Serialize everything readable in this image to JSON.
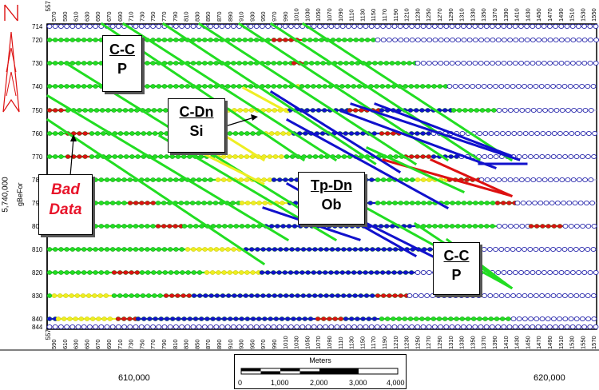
{
  "ruler_top": [
    "570",
    "590",
    "610",
    "630",
    "650",
    "670",
    "690",
    "710",
    "730",
    "750",
    "770",
    "790",
    "810",
    "830",
    "850",
    "870",
    "890",
    "910",
    "930",
    "950",
    "970",
    "990",
    "1010",
    "1030",
    "1050",
    "1070",
    "1090",
    "1110",
    "1130",
    "1150",
    "1170",
    "1190",
    "1210",
    "1230",
    "1250",
    "1270",
    "1290",
    "1310",
    "1330",
    "1350",
    "1370",
    "1390",
    "1410",
    "1430",
    "1450",
    "1470",
    "1490",
    "1510",
    "1530",
    "1550"
  ],
  "ruler_bottom": [
    "590",
    "610",
    "630",
    "650",
    "670",
    "690",
    "710",
    "730",
    "750",
    "770",
    "790",
    "810",
    "830",
    "850",
    "870",
    "890",
    "910",
    "930",
    "950",
    "970",
    "990",
    "1010",
    "1030",
    "1050",
    "1070",
    "1090",
    "1110",
    "1130",
    "1150",
    "1170",
    "1190",
    "1210",
    "1230",
    "1250",
    "1270",
    "1290",
    "1310",
    "1330",
    "1350",
    "1370",
    "1390",
    "1410",
    "1430",
    "1450",
    "1470",
    "1490",
    "1510",
    "1530",
    "1550",
    "1570"
  ],
  "corner_labels": {
    "top": "557",
    "bottom": "557"
  },
  "line_labels": [
    "714",
    "720",
    "730",
    "740",
    "750",
    "760",
    "770",
    "780",
    "790",
    "800",
    "810",
    "820",
    "830",
    "840",
    "844"
  ],
  "callouts": [
    {
      "line1": "C-C",
      "line2": "P"
    },
    {
      "line1": "C-Dn",
      "line2": "Si"
    },
    {
      "line1": "Tp-Dn",
      "line2": "Ob"
    },
    {
      "line1": "C-C",
      "line2": "P"
    },
    {
      "line1": "Bad",
      "line2": "Data"
    }
  ],
  "axis": {
    "northing_label": "5,740,000",
    "field_code_label": "gBeFor",
    "easting_left": "610,000",
    "easting_right": "620,000"
  },
  "scale_bar": {
    "title": "Meters",
    "labels": [
      "0",
      "1,000",
      "2,000",
      "3,000",
      "4,000"
    ]
  },
  "colors": {
    "green": "#22dd22",
    "blue": "#1111cc",
    "yellow": "#eeee22",
    "red": "#dd1111",
    "empty_marker": "#2222aa",
    "frame": "#000000",
    "bad_text": "#e8142a"
  },
  "icons": [
    "north-arrow-icon",
    "scale-bar-icon"
  ]
}
